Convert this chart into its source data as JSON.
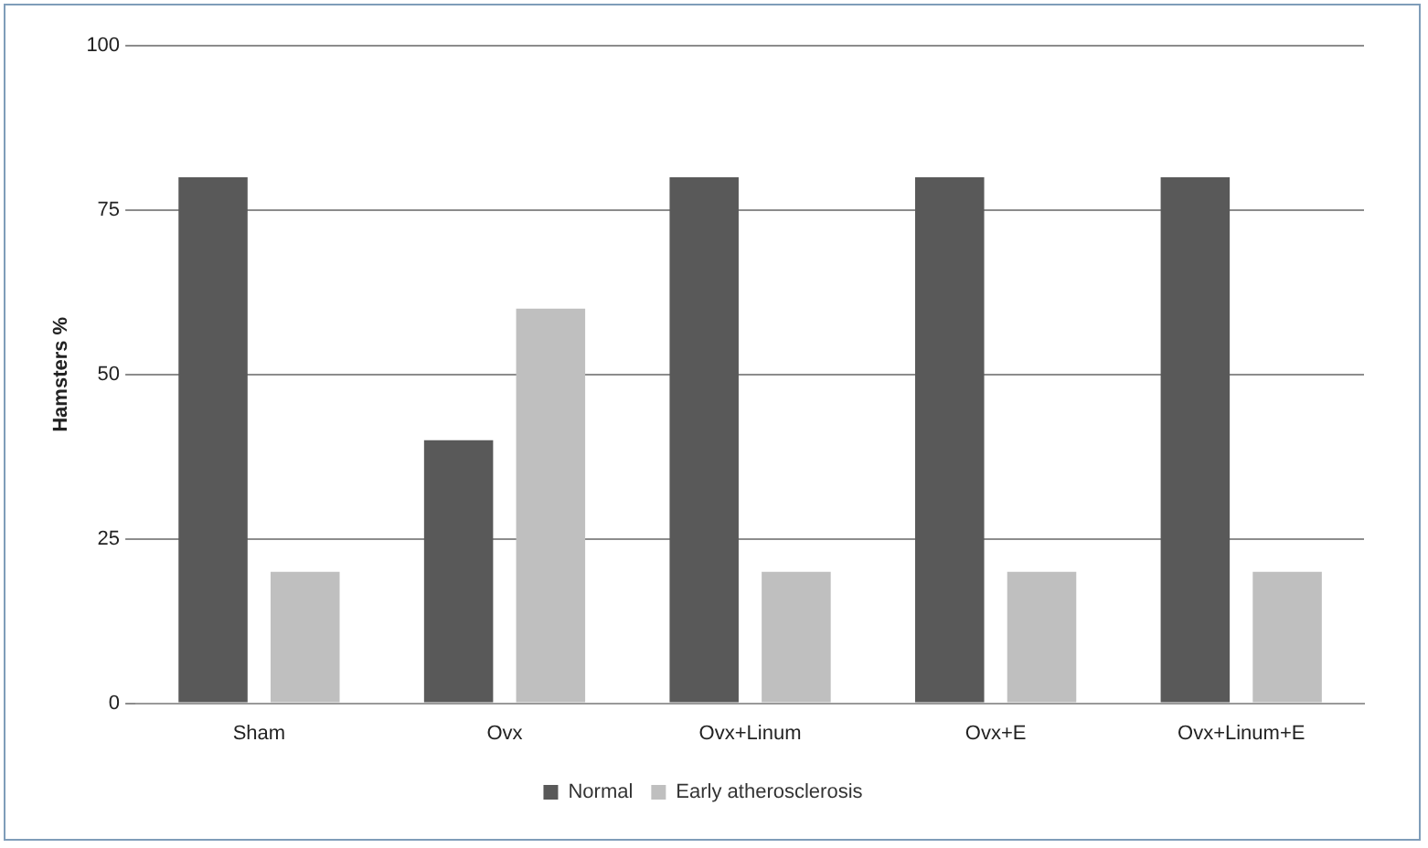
{
  "chart_data": {
    "type": "bar",
    "ylabel": "Hamsters %",
    "categories": [
      "Sham",
      "Ovx",
      "Ovx+Linum",
      "Ovx+E",
      "Ovx+Linum+E"
    ],
    "series": [
      {
        "name": "Normal",
        "color": "#595959",
        "values": [
          80,
          40,
          80,
          80,
          80
        ]
      },
      {
        "name": "Early atherosclerosis",
        "color": "#bfbfbf",
        "values": [
          20,
          60,
          20,
          20,
          20
        ]
      }
    ],
    "ylim": [
      0,
      100
    ],
    "yticks": [
      0,
      25,
      50,
      75,
      100
    ],
    "grid": "y",
    "legend": "bottom"
  }
}
